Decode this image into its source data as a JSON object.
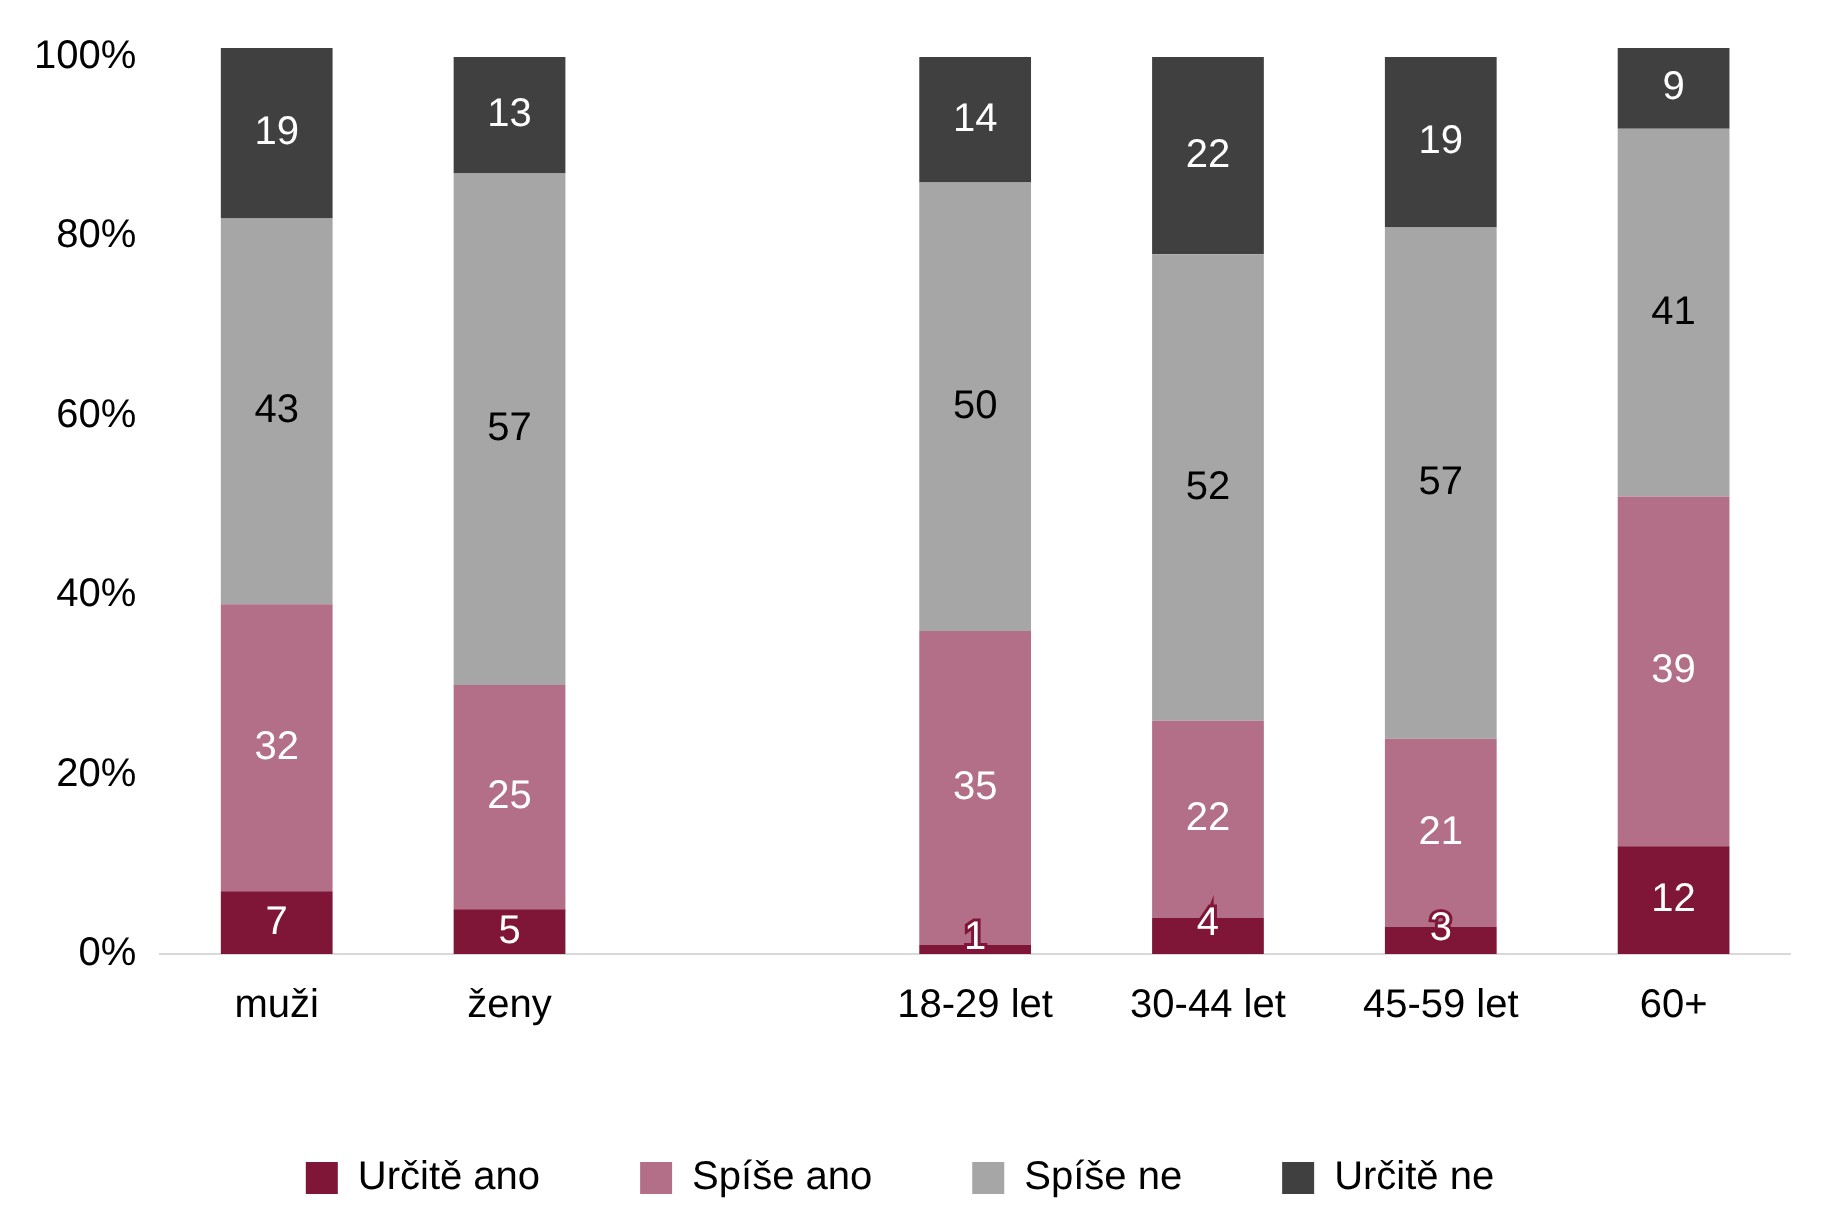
{
  "chart_data": {
    "type": "bar",
    "stacked": true,
    "categories": [
      "muži",
      "ženy",
      null,
      "18-29 let",
      "30-44 let",
      "45-59 let",
      "60+"
    ],
    "series": [
      {
        "name": "Určitě ano",
        "color": "#7f1637",
        "values": [
          7,
          5,
          null,
          1,
          4,
          3,
          12
        ]
      },
      {
        "name": "Spíše ano",
        "color": "#b36f87",
        "values": [
          32,
          25,
          null,
          35,
          22,
          21,
          39
        ]
      },
      {
        "name": "Spíše ne",
        "color": "#a6a6a6",
        "values": [
          43,
          57,
          null,
          50,
          52,
          57,
          41
        ]
      },
      {
        "name": "Určitě ne",
        "color": "#404040",
        "values": [
          19,
          13,
          null,
          14,
          22,
          19,
          9
        ]
      }
    ],
    "ylim": [
      0,
      101
    ],
    "yticks": [
      {
        "value": 0,
        "label": "0%"
      },
      {
        "value": 20,
        "label": "20%"
      },
      {
        "value": 40,
        "label": "40%"
      },
      {
        "value": 60,
        "label": "60%"
      },
      {
        "value": 80,
        "label": "80%"
      },
      {
        "value": 100,
        "label": "100%"
      }
    ],
    "grid": false,
    "legend": "bottom",
    "data_labels": true
  }
}
